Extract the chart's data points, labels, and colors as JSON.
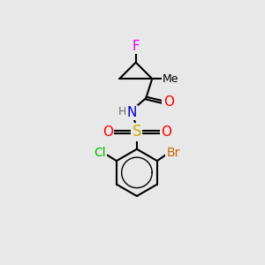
{
  "background_color": "#e8e8e8",
  "bond_color": "#000000",
  "atom_colors": {
    "F": "#ee00ee",
    "N": "#0000cc",
    "O": "#ff0000",
    "S": "#ccaa00",
    "Cl": "#00bb00",
    "Br": "#cc6600",
    "H": "#666666",
    "C": "#000000"
  },
  "font_size": 10
}
